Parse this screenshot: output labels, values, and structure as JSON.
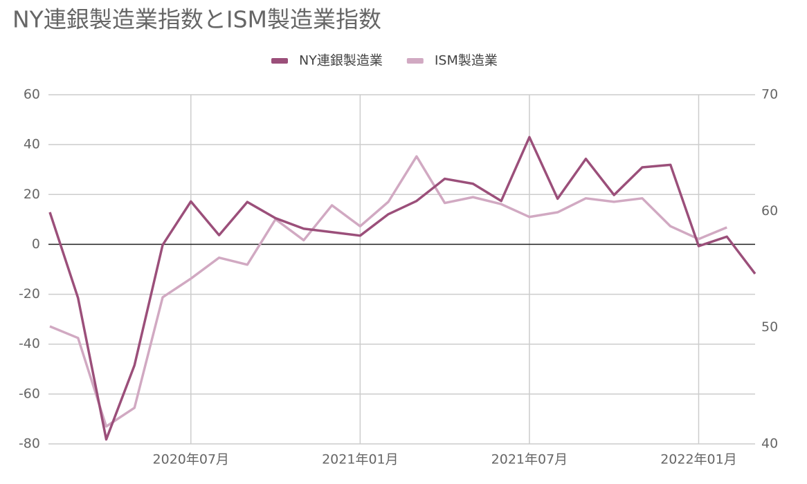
{
  "chart_data": {
    "type": "line",
    "title": "NY連銀製造業指数とISM製造業指数",
    "categories": [
      null,
      null,
      null,
      null,
      null,
      "2020年07月",
      null,
      null,
      null,
      null,
      null,
      "2021年01月",
      null,
      null,
      null,
      null,
      null,
      "2021年07月",
      null,
      null,
      null,
      null,
      null,
      "2022年01月",
      null,
      null
    ],
    "series": [
      {
        "name": "NY連銀製造業",
        "color": "#9b4f7a",
        "axis": "y",
        "values": [
          12.9,
          -21.5,
          -78.2,
          -48.5,
          -0.2,
          17.2,
          3.7,
          17.0,
          10.5,
          6.3,
          4.9,
          3.5,
          12.1,
          17.4,
          26.3,
          24.3,
          17.4,
          43.0,
          18.3,
          34.3,
          19.8,
          30.9,
          31.9,
          -0.7,
          3.1,
          -11.8
        ]
      },
      {
        "name": "ISM製造業",
        "color": "#d1a9c2",
        "axis": "y2",
        "values": [
          50.1,
          49.1,
          41.5,
          43.1,
          52.6,
          54.2,
          56.0,
          55.4,
          59.3,
          57.5,
          60.5,
          58.7,
          60.8,
          64.7,
          60.7,
          61.2,
          60.6,
          59.5,
          59.9,
          61.1,
          60.8,
          61.1,
          58.7,
          57.6,
          58.6,
          null
        ]
      }
    ],
    "ylim": [
      -80,
      60
    ],
    "yticks": [
      -80,
      -60,
      -40,
      -20,
      0,
      20,
      40,
      60
    ],
    "y2lim": [
      40,
      70
    ],
    "y2ticks": [
      40,
      50,
      60,
      70
    ],
    "grid": true,
    "legend": "top"
  }
}
